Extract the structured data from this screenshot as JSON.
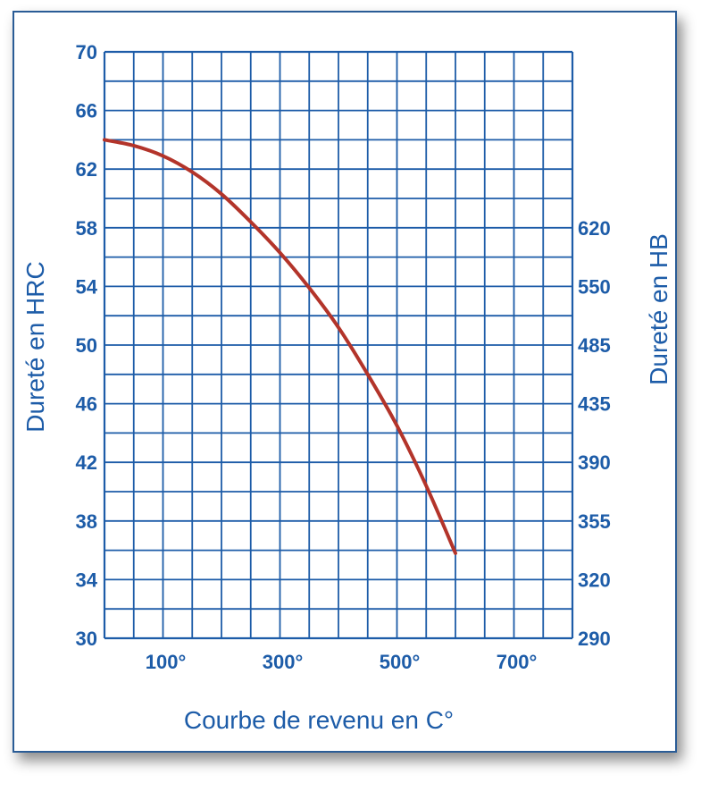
{
  "colors": {
    "grid": "#1d5ca8",
    "text": "#1d5ca8",
    "curve": "#b3342a",
    "border": "#2a5c96"
  },
  "chart_data": {
    "type": "line",
    "title": "",
    "xlabel": "Courbe de revenu en C°",
    "ylabel": "Dureté en HRC",
    "y2label": "Dureté en HB",
    "xlim": [
      0,
      800
    ],
    "ylim": [
      30,
      70
    ],
    "grid": true,
    "x_ticks": [
      "100°",
      "300°",
      "500°",
      "700°"
    ],
    "x_tick_values": [
      100,
      300,
      500,
      700
    ],
    "y_ticks": [
      "70",
      "66",
      "62",
      "58",
      "54",
      "50",
      "46",
      "42",
      "38",
      "34",
      "30"
    ],
    "y_tick_values": [
      70,
      66,
      62,
      58,
      54,
      50,
      46,
      42,
      38,
      34,
      30
    ],
    "y2_ticks": [
      "620",
      "550",
      "485",
      "435",
      "390",
      "355",
      "320",
      "290"
    ],
    "y2_tick_positions": [
      58,
      54,
      50,
      46,
      42,
      38,
      34,
      30
    ],
    "series": [
      {
        "x": [
          0,
          50,
          100,
          150,
          200,
          250,
          300,
          350,
          400,
          450,
          500,
          550,
          600
        ],
        "y": [
          64.0,
          63.6,
          62.9,
          61.8,
          60.3,
          58.4,
          56.3,
          53.9,
          51.2,
          48.0,
          44.5,
          40.4,
          35.8
        ]
      }
    ]
  }
}
